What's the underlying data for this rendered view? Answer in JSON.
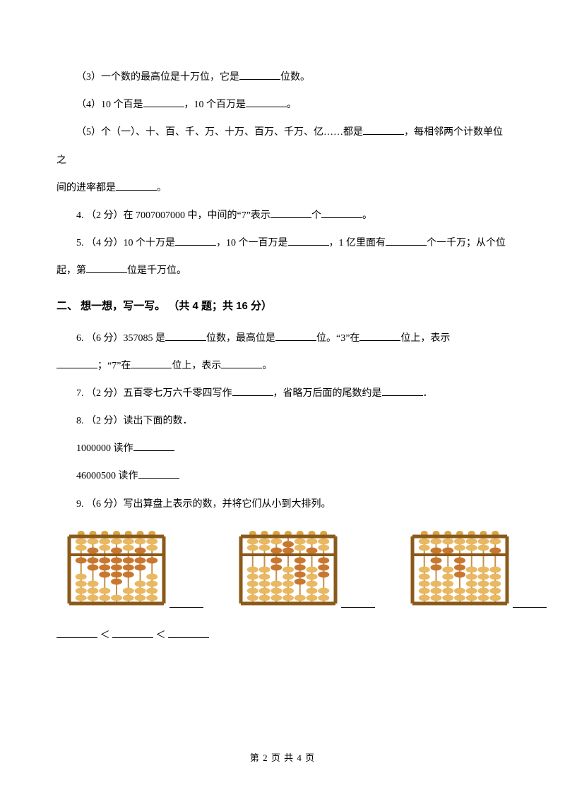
{
  "q3part3": {
    "prefix": "（3）一个数的最高位是十万位，它是",
    "suffix": "位数。"
  },
  "q3part4": {
    "prefix": "（4）10 个百是",
    "mid": "，10 个百万是",
    "suffix": "。"
  },
  "q3part5a": "（5）个（一）、十、百、千、万、十万、百万、千万、亿……都是",
  "q3part5b": "，每相邻两个计数单位之",
  "q3part5c": "间的进率都是",
  "q3part5d": "。",
  "q4": {
    "a": "4. （2 分）在 7007007000 中，中间的“7”表示",
    "b": "个",
    "c": "。"
  },
  "q5": {
    "a": "5.  （4 分）10 个十万是",
    "b": "，10 个一百万是",
    "c": "，1 亿里面有",
    "d": "个一千万；从个位",
    "e": "起，第",
    "f": "位是千万位。"
  },
  "section2": "二、 想一想，写一写。 （共 4 题；共 16 分）",
  "q6": {
    "a": "6.         （6 分）357085 是",
    "b": "位数，最高位是",
    "c": "位。“3”在",
    "d": "位上，表示",
    "e": "；“7”在",
    "f": "位上，表示",
    "g": "。"
  },
  "q7": {
    "a": "7. （2 分）五百零七万六千零四写作",
    "b": "，省略万后面的尾数约是",
    "c": "．"
  },
  "q8": "8. （2 分）读出下面的数．",
  "q8a": "1000000 读作",
  "q8b": "46000500 读作",
  "q9": "9. （6 分）写出算盘上表示的数，并将它们从小到大排列。",
  "compare_lt": "＜",
  "footer": "第 2 页 共 4 页",
  "abacus_colors": {
    "frame": "#8b5a1a",
    "rod": "#c6924b",
    "bead_light": "#e9b862",
    "bead_dark": "#c9772f"
  },
  "abaci": [
    {
      "upper": [
        0,
        1,
        0,
        1,
        0,
        1,
        0
      ],
      "lower": [
        1,
        2,
        3,
        4,
        3,
        2,
        1
      ]
    },
    {
      "upper": [
        0,
        0,
        1,
        2,
        0,
        1,
        0
      ],
      "lower": [
        0,
        0,
        2,
        0,
        4,
        0,
        3
      ]
    },
    {
      "upper": [
        0,
        1,
        1,
        0,
        0,
        0,
        1
      ],
      "lower": [
        0,
        2,
        0,
        3,
        0,
        0,
        0
      ]
    }
  ]
}
